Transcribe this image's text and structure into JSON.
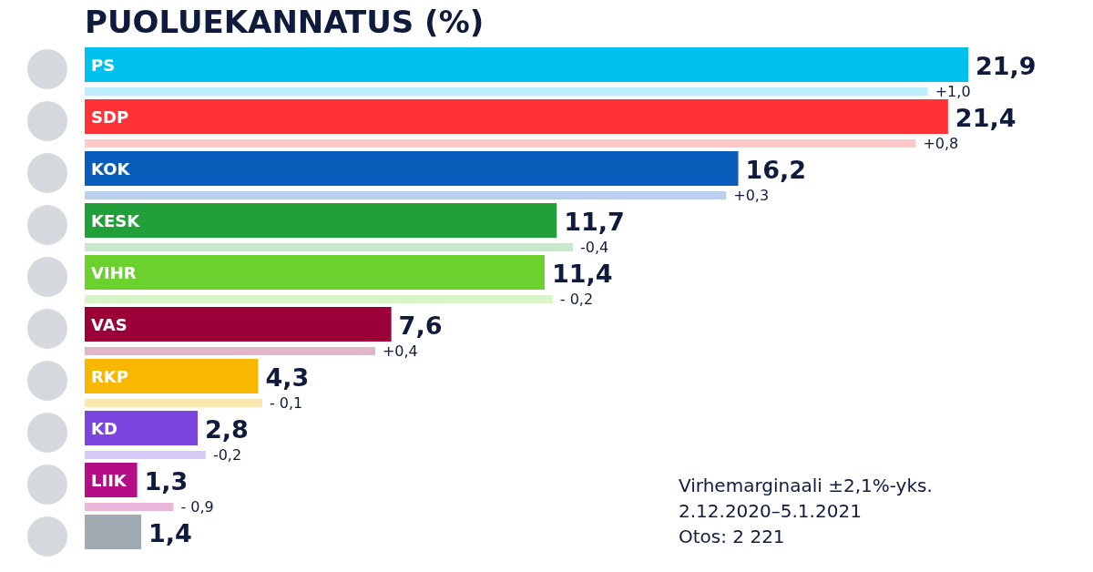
{
  "chart_data": {
    "type": "bar",
    "orientation": "horizontal",
    "title": "PUOLUEKANNATUS (%)",
    "categories": [
      "PS",
      "SDP",
      "KOK",
      "KESK",
      "VIHR",
      "VAS",
      "RKP",
      "KD",
      "LIIK",
      null
    ],
    "series": [
      {
        "values": [
          21.9,
          21.4,
          16.2,
          11.7,
          11.4,
          7.6,
          4.3,
          2.8,
          1.3,
          1.4
        ],
        "colors": [
          "#00c0ee",
          "#ff3336",
          "#0a5cba",
          "#21a03a",
          "#6cd12e",
          "#9b0038",
          "#f8b800",
          "#7d45e0",
          "#b40d86",
          "#a0aab2"
        ],
        "value_labels": [
          "21,9",
          "21,4",
          "16,2",
          "11,7",
          "11,4",
          "7,6",
          "4,3",
          "2,8",
          "1,3",
          "1,4"
        ]
      },
      {
        "values": [
          20.9,
          20.6,
          15.9,
          12.1,
          11.6,
          7.2,
          4.4,
          3.0,
          2.2,
          null
        ],
        "colors": [
          "#bfeefb",
          "#ffc9ca",
          "#bad0ec",
          "#c6e8cb",
          "#d9f4c8",
          "#e2b4c8",
          "#fde7b0",
          "#d8caf6",
          "#e8b6d9",
          null
        ]
      }
    ],
    "annotations": [
      {
        "text": "+1,0",
        "x": 20.9,
        "y": "PS"
      },
      {
        "text": "+0,8",
        "x": 20.6,
        "y": "SDP"
      },
      {
        "text": "+0,3",
        "x": 15.9,
        "y": "KOK"
      },
      {
        "text": "-0,4",
        "x": 12.1,
        "y": "KESK"
      },
      {
        "text": "- 0,2",
        "x": 11.6,
        "y": "VIHR"
      },
      {
        "text": "+0,4",
        "x": 7.2,
        "y": "VAS"
      },
      {
        "text": "- 0,1",
        "x": 4.4,
        "y": "RKP"
      },
      {
        "text": "-0,2",
        "x": 3.0,
        "y": "KD"
      },
      {
        "text": "- 0,9",
        "x": 2.2,
        "y": "LIIK"
      },
      "Virhemarginaali ±2,1%-yks.",
      "2.12.2020–5.1.2021",
      "Otos: 2 221"
    ]
  }
}
